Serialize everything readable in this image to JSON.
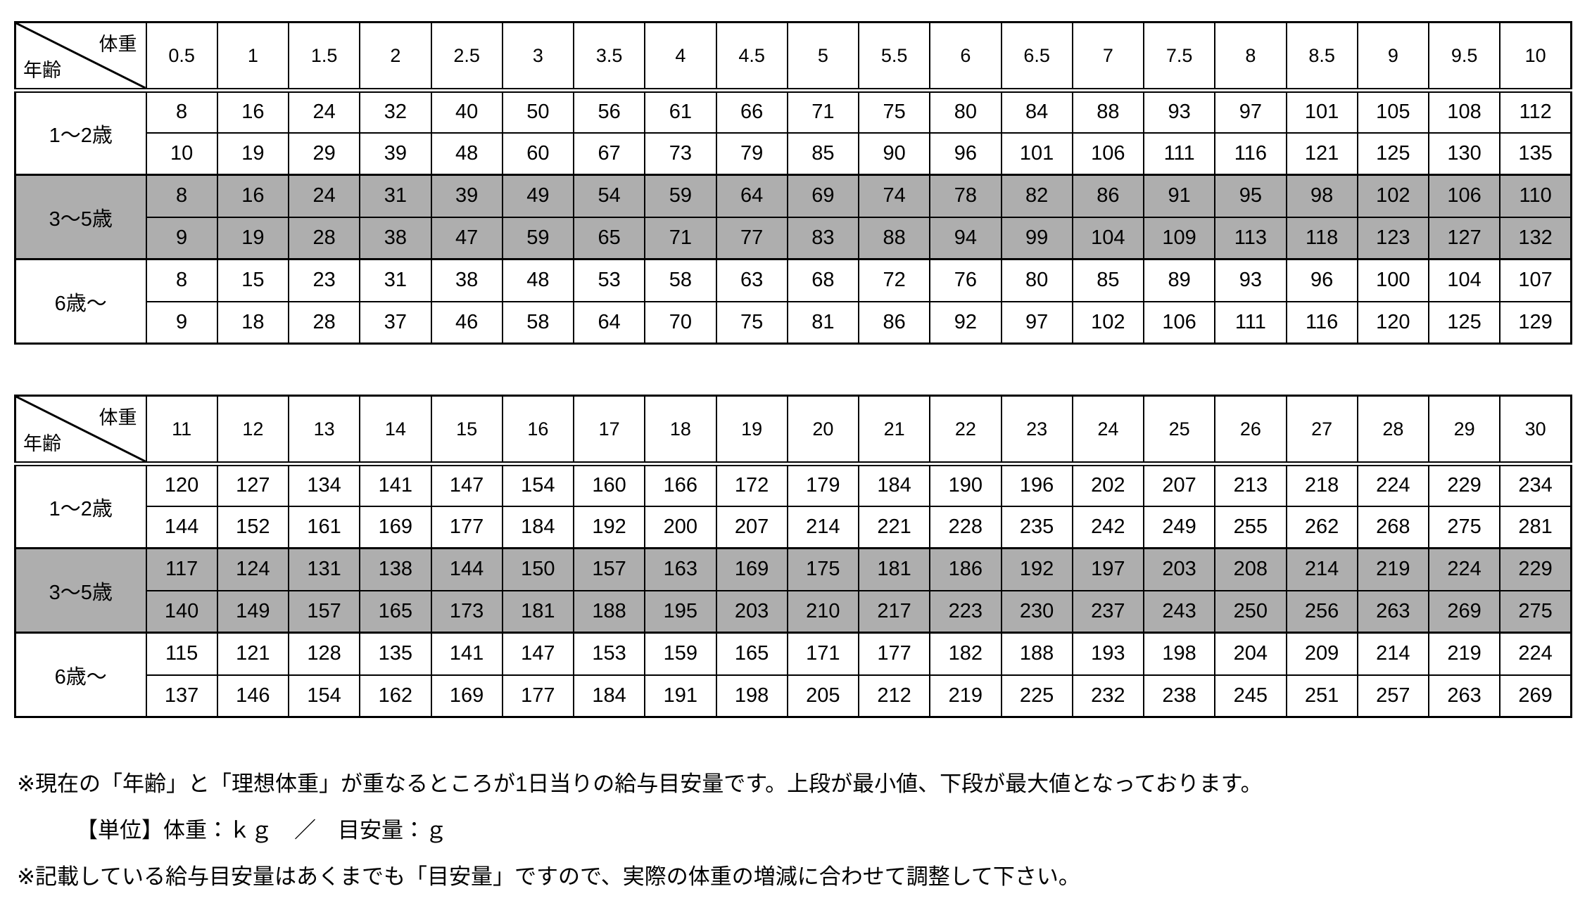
{
  "corner": {
    "top_label": "体重",
    "bottom_label": "年齢"
  },
  "colors": {
    "row_highlight": "#aeaeae",
    "border": "#000000",
    "background": "#ffffff",
    "text": "#000000"
  },
  "tables": [
    {
      "weights": [
        "0.5",
        "1",
        "1.5",
        "2",
        "2.5",
        "3",
        "3.5",
        "4",
        "4.5",
        "5",
        "5.5",
        "6",
        "6.5",
        "7",
        "7.5",
        "8",
        "8.5",
        "9",
        "9.5",
        "10"
      ],
      "groups": [
        {
          "age": "1〜2歳",
          "shaded": false,
          "min": [
            8,
            16,
            24,
            32,
            40,
            50,
            56,
            61,
            66,
            71,
            75,
            80,
            84,
            88,
            93,
            97,
            101,
            105,
            108,
            112
          ],
          "max": [
            10,
            19,
            29,
            39,
            48,
            60,
            67,
            73,
            79,
            85,
            90,
            96,
            101,
            106,
            111,
            116,
            121,
            125,
            130,
            135
          ]
        },
        {
          "age": "3〜5歳",
          "shaded": true,
          "min": [
            8,
            16,
            24,
            31,
            39,
            49,
            54,
            59,
            64,
            69,
            74,
            78,
            82,
            86,
            91,
            95,
            98,
            102,
            106,
            110
          ],
          "max": [
            9,
            19,
            28,
            38,
            47,
            59,
            65,
            71,
            77,
            83,
            88,
            94,
            99,
            104,
            109,
            113,
            118,
            123,
            127,
            132
          ]
        },
        {
          "age": "6歳〜",
          "shaded": false,
          "min": [
            8,
            15,
            23,
            31,
            38,
            48,
            53,
            58,
            63,
            68,
            72,
            76,
            80,
            85,
            89,
            93,
            96,
            100,
            104,
            107
          ],
          "max": [
            9,
            18,
            28,
            37,
            46,
            58,
            64,
            70,
            75,
            81,
            86,
            92,
            97,
            102,
            106,
            111,
            116,
            120,
            125,
            129
          ]
        }
      ]
    },
    {
      "weights": [
        "11",
        "12",
        "13",
        "14",
        "15",
        "16",
        "17",
        "18",
        "19",
        "20",
        "21",
        "22",
        "23",
        "24",
        "25",
        "26",
        "27",
        "28",
        "29",
        "30"
      ],
      "groups": [
        {
          "age": "1〜2歳",
          "shaded": false,
          "min": [
            120,
            127,
            134,
            141,
            147,
            154,
            160,
            166,
            172,
            179,
            184,
            190,
            196,
            202,
            207,
            213,
            218,
            224,
            229,
            234
          ],
          "max": [
            144,
            152,
            161,
            169,
            177,
            184,
            192,
            200,
            207,
            214,
            221,
            228,
            235,
            242,
            249,
            255,
            262,
            268,
            275,
            281
          ]
        },
        {
          "age": "3〜5歳",
          "shaded": true,
          "min": [
            117,
            124,
            131,
            138,
            144,
            150,
            157,
            163,
            169,
            175,
            181,
            186,
            192,
            197,
            203,
            208,
            214,
            219,
            224,
            229
          ],
          "max": [
            140,
            149,
            157,
            165,
            173,
            181,
            188,
            195,
            203,
            210,
            217,
            223,
            230,
            237,
            243,
            250,
            256,
            263,
            269,
            275
          ]
        },
        {
          "age": "6歳〜",
          "shaded": false,
          "min": [
            115,
            121,
            128,
            135,
            141,
            147,
            153,
            159,
            165,
            171,
            177,
            182,
            188,
            193,
            198,
            204,
            209,
            214,
            219,
            224
          ],
          "max": [
            137,
            146,
            154,
            162,
            169,
            177,
            184,
            191,
            198,
            205,
            212,
            219,
            225,
            232,
            238,
            245,
            251,
            257,
            263,
            269
          ]
        }
      ]
    }
  ],
  "notes": [
    {
      "text": "※現在の「年齢」と「理想体重」が重なるところが1日当りの給与目安量です。上段が最小値、下段が最大値となっております。"
    },
    {
      "text": "【単位】体重：ｋｇ　／　目安量：ｇ"
    },
    {
      "text": "※記載している給与目安量はあくまでも「目安量」ですので、実際の体重の増減に合わせて調整して下さい。"
    }
  ]
}
